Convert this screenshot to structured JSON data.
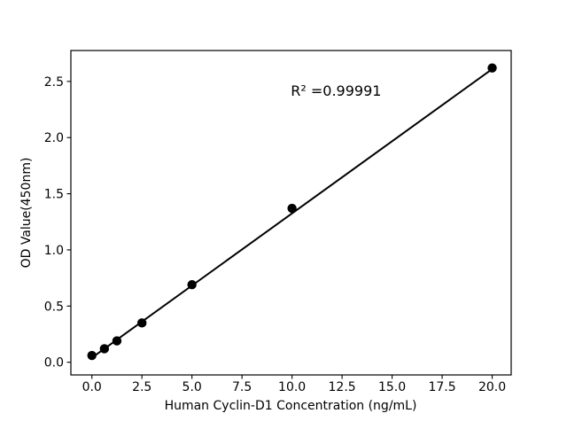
{
  "figure": {
    "background_color": "#ffffff"
  },
  "chart_data": {
    "type": "scatter",
    "title": "",
    "xlabel": "Human Cyclin-D1 Concentration (ng/mL)",
    "ylabel": "OD Value(450nm)",
    "x": [
      0,
      0.625,
      1.25,
      2.5,
      5,
      10,
      20
    ],
    "y": [
      0.06,
      0.12,
      0.19,
      0.35,
      0.69,
      1.37,
      2.62
    ],
    "fit_line": {
      "x1": 0,
      "y1": 0.04,
      "x2": 20,
      "y2": 2.61,
      "slope": 0.1285,
      "intercept": 0.036
    },
    "annotation": {
      "text": "R² =0.99991",
      "r_squared": 0.99991,
      "x": 12.2,
      "y": 2.42
    },
    "xlim": [
      -1.05,
      20.95
    ],
    "ylim": [
      -0.113,
      2.775
    ],
    "xticks": [
      0,
      2.5,
      5,
      7.5,
      10,
      12.5,
      15,
      17.5,
      20
    ],
    "xtick_labels": [
      "0.0",
      "2.5",
      "5.0",
      "7.5",
      "10.0",
      "12.5",
      "15.0",
      "17.5",
      "20.0"
    ],
    "yticks": [
      0,
      0.5,
      1,
      1.5,
      2,
      2.5
    ],
    "ytick_labels": [
      "0.0",
      "0.5",
      "1.0",
      "1.5",
      "2.0",
      "2.5"
    ],
    "grid": false,
    "legend": false,
    "marker": "circle",
    "marker_color": "#000000",
    "line_color": "#000000",
    "axis_color": "#000000"
  }
}
